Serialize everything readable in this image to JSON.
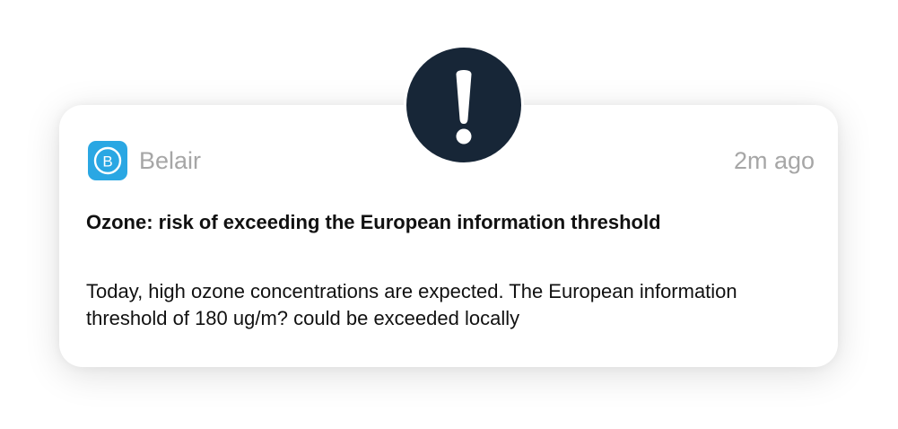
{
  "notification": {
    "app_icon": "belair-logo-icon",
    "app_icon_letter": "B",
    "app_name": "Belair",
    "time": "2m ago",
    "title": "Ozone: risk of exceeding the European information threshold",
    "body": "Today, high ozone concentrations are expected. The European information threshold of 180 ug/m? could be exceeded locally"
  },
  "alert_badge": {
    "icon": "exclamation-icon",
    "color": "#172637"
  },
  "colors": {
    "app_icon_bg": "#2aa7e3",
    "meta_text": "#a6a6a6",
    "main_text": "#111111"
  }
}
